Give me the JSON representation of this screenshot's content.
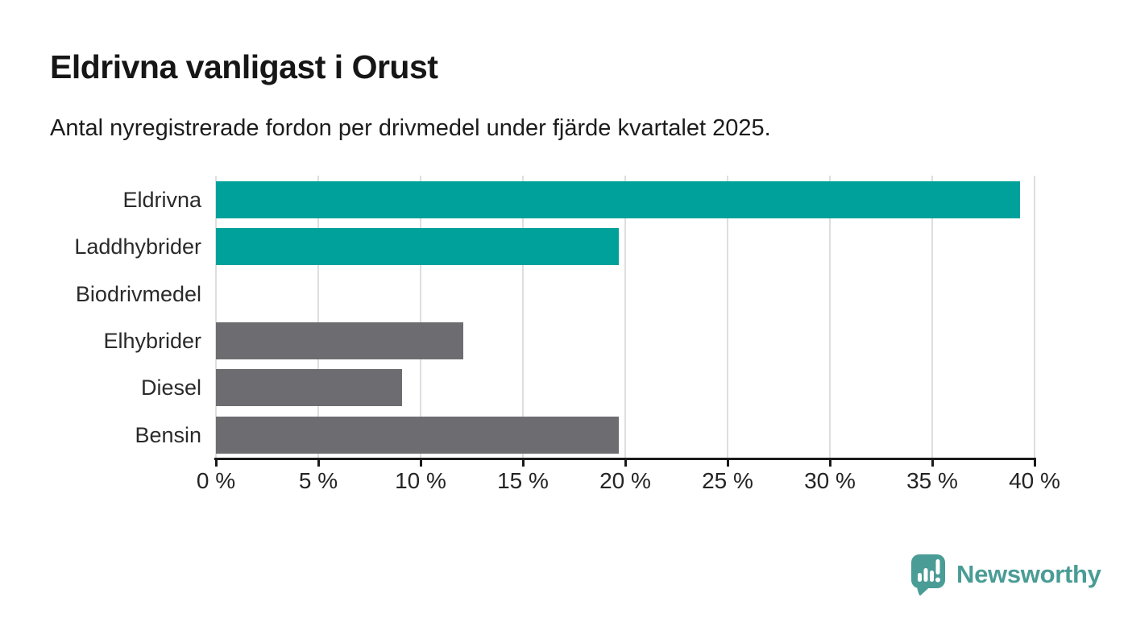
{
  "header": {
    "title": "Eldrivna vanligast i Orust",
    "subtitle": "Antal nyregistrerade fordon per drivmedel under fjärde kvartalet 2025."
  },
  "chart_data": {
    "type": "bar",
    "orientation": "horizontal",
    "title": "Eldrivna vanligast i Orust",
    "subtitle": "Antal nyregistrerade fordon per drivmedel under fjärde kvartalet 2025.",
    "categories": [
      "Eldrivna",
      "Laddhybrider",
      "Biodrivmedel",
      "Elhybrider",
      "Diesel",
      "Bensin"
    ],
    "values": [
      39.3,
      19.7,
      0,
      12.1,
      9.1,
      19.7
    ],
    "unit": "%",
    "xlim": [
      0,
      40
    ],
    "x_ticks": [
      0,
      5,
      10,
      15,
      20,
      25,
      30,
      35,
      40
    ],
    "x_tick_labels": [
      "0 %",
      "5 %",
      "10 %",
      "15 %",
      "20 %",
      "25 %",
      "30 %",
      "35 %",
      "40 %"
    ],
    "grid": true,
    "legend": "none",
    "bar_colors": [
      "#00a19b",
      "#00a19b",
      "#6d6d71",
      "#6d6d71",
      "#6d6d71",
      "#6d6d71"
    ],
    "highlight_color": "#00a19b",
    "default_color": "#6d6d71"
  },
  "colors": {
    "accent_teal": "#00a19b",
    "neutral_gray": "#6d6d71",
    "gridline": "#dedede",
    "axis": "#1a1a1a",
    "brand_teal": "#4a9c96",
    "background": "#ffffff"
  },
  "footer": {
    "brand": "Newsworthy",
    "logo_icon": "bar-chart-speech-bubble-icon"
  }
}
